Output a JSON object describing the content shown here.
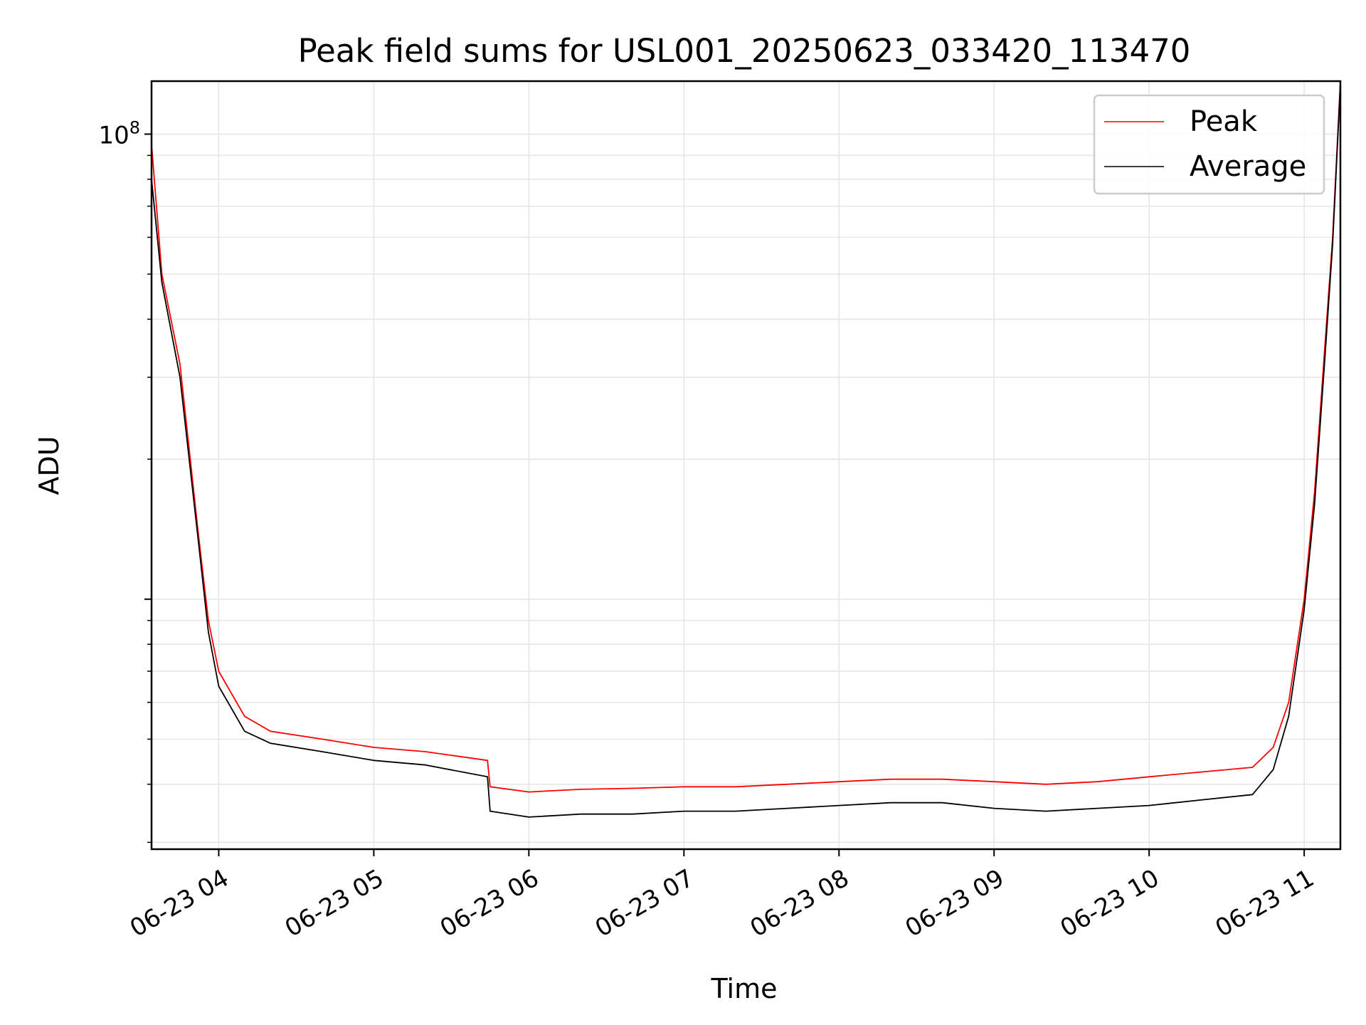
{
  "chart_data": {
    "type": "line",
    "title": "Peak field sums for USL001_20250623_033420_113470",
    "xlabel": "Time",
    "ylabel": "ADU",
    "x_ticks": [
      "06-23 04",
      "06-23 05",
      "06-23 06",
      "06-23 07",
      "06-23 08",
      "06-23 09",
      "06-23 10",
      "06-23 11"
    ],
    "y_ticks": [
      {
        "base": "10",
        "exp": "8",
        "value": 100000000
      }
    ],
    "y_scale": "log",
    "xlim": [
      "06-23 03:34",
      "06-23 11:14"
    ],
    "ylim": [
      2900000,
      130000000
    ],
    "grid": true,
    "legend_position": "upper-right",
    "series": [
      {
        "name": "Peak",
        "color": "#ff0000",
        "points": [
          [
            "03:34",
            95000000
          ],
          [
            "03:38",
            50000000
          ],
          [
            "03:45",
            32000000
          ],
          [
            "03:52",
            14000000
          ],
          [
            "03:56",
            9000000
          ],
          [
            "04:00",
            7000000
          ],
          [
            "04:10",
            5600000
          ],
          [
            "04:20",
            5200000
          ],
          [
            "04:40",
            5000000
          ],
          [
            "05:00",
            4800000
          ],
          [
            "05:20",
            4700000
          ],
          [
            "05:44",
            4500000
          ],
          [
            "05:45",
            3950000
          ],
          [
            "06:00",
            3850000
          ],
          [
            "06:20",
            3900000
          ],
          [
            "06:40",
            3920000
          ],
          [
            "07:00",
            3950000
          ],
          [
            "07:20",
            3950000
          ],
          [
            "07:40",
            4000000
          ],
          [
            "08:00",
            4050000
          ],
          [
            "08:20",
            4100000
          ],
          [
            "08:40",
            4100000
          ],
          [
            "09:00",
            4050000
          ],
          [
            "09:20",
            4000000
          ],
          [
            "09:40",
            4050000
          ],
          [
            "10:00",
            4150000
          ],
          [
            "10:20",
            4250000
          ],
          [
            "10:40",
            4350000
          ],
          [
            "10:48",
            4800000
          ],
          [
            "10:54",
            6000000
          ],
          [
            "11:00",
            10000000
          ],
          [
            "11:04",
            17000000
          ],
          [
            "11:08",
            35000000
          ],
          [
            "11:11",
            60000000
          ],
          [
            "11:14",
            130000000
          ]
        ]
      },
      {
        "name": "Average",
        "color": "#000000",
        "points": [
          [
            "03:34",
            80000000
          ],
          [
            "03:38",
            48000000
          ],
          [
            "03:45",
            30000000
          ],
          [
            "03:52",
            13500000
          ],
          [
            "03:56",
            8500000
          ],
          [
            "04:00",
            6500000
          ],
          [
            "04:10",
            5200000
          ],
          [
            "04:20",
            4900000
          ],
          [
            "04:40",
            4700000
          ],
          [
            "05:00",
            4500000
          ],
          [
            "05:20",
            4400000
          ],
          [
            "05:44",
            4150000
          ],
          [
            "05:45",
            3500000
          ],
          [
            "06:00",
            3400000
          ],
          [
            "06:20",
            3450000
          ],
          [
            "06:40",
            3450000
          ],
          [
            "07:00",
            3500000
          ],
          [
            "07:20",
            3500000
          ],
          [
            "07:40",
            3550000
          ],
          [
            "08:00",
            3600000
          ],
          [
            "08:20",
            3650000
          ],
          [
            "08:40",
            3650000
          ],
          [
            "09:00",
            3550000
          ],
          [
            "09:20",
            3500000
          ],
          [
            "09:40",
            3550000
          ],
          [
            "10:00",
            3600000
          ],
          [
            "10:20",
            3700000
          ],
          [
            "10:40",
            3800000
          ],
          [
            "10:48",
            4300000
          ],
          [
            "10:54",
            5600000
          ],
          [
            "11:00",
            9500000
          ],
          [
            "11:04",
            16000000
          ],
          [
            "11:08",
            33000000
          ],
          [
            "11:11",
            58000000
          ],
          [
            "11:14",
            128000000
          ]
        ]
      }
    ]
  }
}
